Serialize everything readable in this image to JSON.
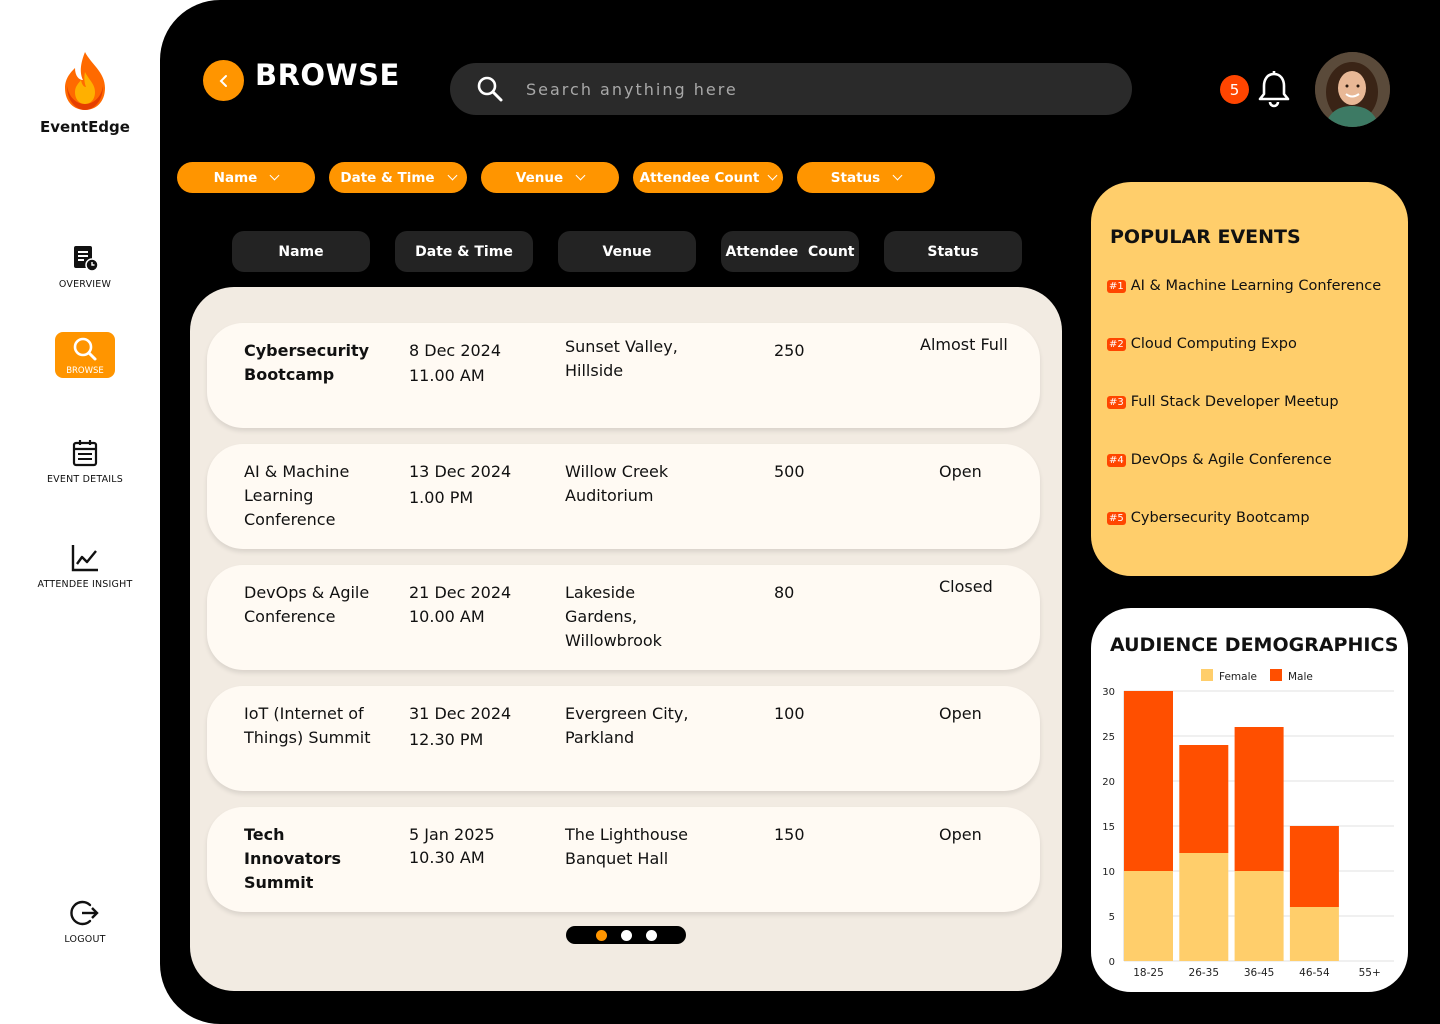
{
  "app": {
    "name": "EventEdge"
  },
  "nav": {
    "overview": "OVERVIEW",
    "browse": "BROWSE",
    "event_details": "EVENT DETAILS",
    "attendee_insight": "ATTENDEE INSIGHT",
    "logout": "LOGOUT"
  },
  "header": {
    "title": "BROWSE",
    "search_placeholder": "Search anything here",
    "notifications": "5"
  },
  "filters": [
    "Name",
    "Date & Time",
    "Venue",
    "Attendee Count",
    "Status"
  ],
  "columns": [
    "Name",
    "Date & Time",
    "Venue",
    "Attendee  Count",
    "Status"
  ],
  "events": [
    {
      "name": "Cybersecurity Bootcamp",
      "date": "8 Dec 2024",
      "time": "11.00 AM",
      "venue": "Sunset Valley, Hillside",
      "count": "250",
      "status": "Almost Full"
    },
    {
      "name": "AI & Machine Learning Conference",
      "date": "13 Dec 2024",
      "time": "1.00 PM",
      "venue": "Willow Creek Auditorium",
      "count": "500",
      "status": "Open"
    },
    {
      "name": "DevOps & Agile Conference",
      "date": "21 Dec 2024",
      "time": "10.00 AM",
      "venue": "Lakeside Gardens, Willowbrook",
      "count": "80",
      "status": "Closed"
    },
    {
      "name": "IoT (Internet of Things) Summit",
      "date": "31 Dec 2024",
      "time": "12.30 PM",
      "venue": "Evergreen City, Parkland",
      "count": "100",
      "status": "Open"
    },
    {
      "name": "Tech Innovators Summit",
      "date": "5 Jan 2025",
      "time": "10.30 AM",
      "venue": "The Lighthouse Banquet Hall",
      "count": "150",
      "status": "Open"
    }
  ],
  "popular": {
    "title": "POPULAR EVENTS",
    "items": [
      {
        "rank": "#1",
        "name": "AI & Machine Learning Conference"
      },
      {
        "rank": "#2",
        "name": "Cloud Computing Expo"
      },
      {
        "rank": "#3",
        "name": "Full Stack Developer Meetup"
      },
      {
        "rank": "#4",
        "name": "DevOps & Agile Conference"
      },
      {
        "rank": "#5",
        "name": "Cybersecurity Bootcamp"
      }
    ]
  },
  "demographics": {
    "title": "AUDIENCE DEMOGRAPHICS"
  },
  "colors": {
    "accent": "#FF9500",
    "female": "#FFCE6B",
    "male": "#FF4F00",
    "badge": "#FF4500"
  },
  "chart_data": {
    "type": "bar",
    "stacked": true,
    "categories": [
      "18-25",
      "26-35",
      "36-45",
      "46-54",
      "55+"
    ],
    "series": [
      {
        "name": "Female",
        "values": [
          10,
          12,
          10,
          6,
          0
        ]
      },
      {
        "name": "Male",
        "values": [
          20,
          12,
          16,
          9,
          0
        ]
      }
    ],
    "ylim": [
      0,
      30
    ],
    "yticks": [
      0,
      5,
      10,
      15,
      20,
      25,
      30
    ],
    "legend": "top",
    "grid": true
  }
}
